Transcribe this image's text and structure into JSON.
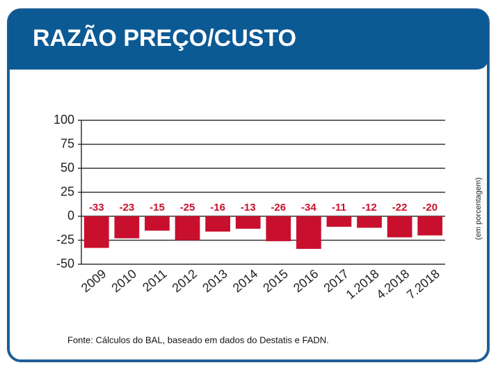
{
  "chart_data": {
    "type": "bar",
    "title": "RAZÃO PREÇO/CUSTO",
    "y_axis_label": "(em porcentagem)",
    "source": "Fonte: Cálculos do BAL, baseado em dados do Destatis e FADN.",
    "categories": [
      "2009",
      "2010",
      "2011",
      "2012",
      "2013",
      "2014",
      "2015",
      "2016",
      "2017",
      "1.2018",
      "4.2018",
      "7.2018"
    ],
    "values": [
      -33,
      -23,
      -15,
      -25,
      -16,
      -13,
      -26,
      -34,
      -11,
      -12,
      -22,
      -20
    ],
    "color": "#c8102e",
    "ylim": [
      -50,
      100
    ],
    "yticks": [
      -50,
      -25,
      0,
      25,
      50,
      75,
      100
    ],
    "grid": true
  }
}
